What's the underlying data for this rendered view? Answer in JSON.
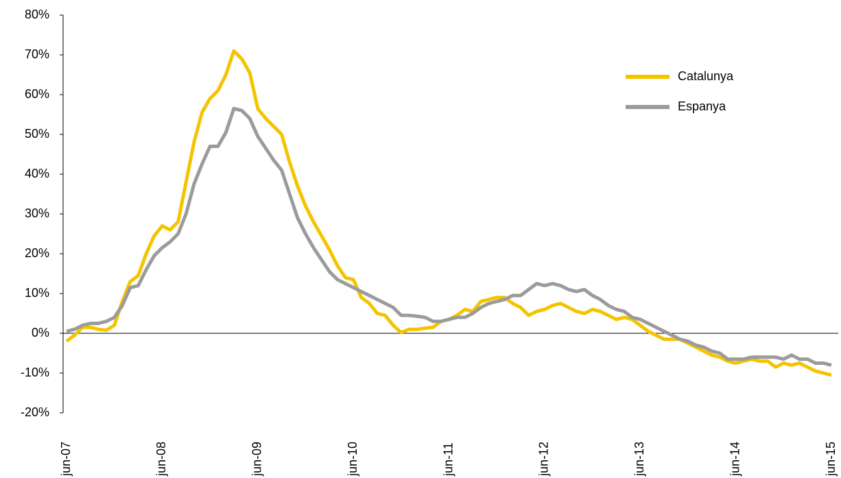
{
  "chart_data": {
    "type": "line",
    "categories": [
      "jun-07",
      null,
      null,
      null,
      null,
      null,
      null,
      null,
      null,
      null,
      null,
      null,
      "jun-08",
      null,
      null,
      null,
      null,
      null,
      null,
      null,
      null,
      null,
      null,
      null,
      "jun-09",
      null,
      null,
      null,
      null,
      null,
      null,
      null,
      null,
      null,
      null,
      null,
      "jun-10",
      null,
      null,
      null,
      null,
      null,
      null,
      null,
      null,
      null,
      null,
      null,
      "jun-11",
      null,
      null,
      null,
      null,
      null,
      null,
      null,
      null,
      null,
      null,
      null,
      "jun-12",
      null,
      null,
      null,
      null,
      null,
      null,
      null,
      null,
      null,
      null,
      null,
      "jun-13",
      null,
      null,
      null,
      null,
      null,
      null,
      null,
      null,
      null,
      null,
      null,
      "jun-14",
      null,
      null,
      null,
      null,
      null,
      null,
      null,
      null,
      null,
      null,
      null,
      "jun-15"
    ],
    "series": [
      {
        "name": "Catalunya",
        "color": "#f5c400",
        "values": [
          -2,
          -0.5,
          1.5,
          1.5,
          1,
          0.8,
          2,
          8,
          13,
          14.5,
          20,
          24.5,
          27,
          26,
          28,
          38,
          48,
          55.5,
          59,
          61,
          65,
          71,
          69,
          65.5,
          56.5,
          54,
          52,
          50,
          43,
          37,
          32,
          28,
          24.5,
          21,
          17,
          14,
          13.5,
          9,
          7.5,
          5,
          4.5,
          2,
          0.2,
          1,
          1,
          1.3,
          1.5,
          3,
          3.5,
          4.5,
          6,
          5.5,
          8,
          8.5,
          9,
          9,
          7.5,
          6.5,
          4.5,
          5.5,
          6,
          7,
          7.5,
          6.5,
          5.5,
          5,
          6,
          5.5,
          4.5,
          3.5,
          4,
          3.5,
          2,
          0.5,
          -0.5,
          -1.5,
          -1.5,
          -1.5,
          -2.5,
          -3.5,
          -4.5,
          -5.5,
          -6,
          -7,
          -7.5,
          -7,
          -6.5,
          -7,
          -7,
          -8.5,
          -7.5,
          -8,
          -7.5,
          -8.5,
          -9.5,
          -10,
          -10.5
        ]
      },
      {
        "name": "Espanya",
        "color": "#9b9b9b",
        "values": [
          0.5,
          1,
          2,
          2.5,
          2.5,
          3,
          4,
          7,
          11.5,
          12,
          16,
          19.5,
          21.5,
          23,
          25,
          30,
          37.5,
          42.5,
          47,
          47,
          50.5,
          56.5,
          56,
          54,
          49.5,
          46.5,
          43.5,
          41,
          35,
          29,
          25,
          21.5,
          18.5,
          15.5,
          13.5,
          12.5,
          11.5,
          10.5,
          9.5,
          8.5,
          7.5,
          6.5,
          4.5,
          4.5,
          4.3,
          4,
          3,
          3,
          3.5,
          4,
          4,
          5,
          6.5,
          7.5,
          8,
          8.5,
          9.5,
          9.5,
          11,
          12.5,
          12,
          12.5,
          12,
          11,
          10.5,
          11,
          9.5,
          8.5,
          7,
          6,
          5.5,
          4,
          3.5,
          2.5,
          1.5,
          0.5,
          -0.5,
          -1.5,
          -2,
          -3,
          -3.5,
          -4.5,
          -5,
          -6.5,
          -6.5,
          -6.5,
          -6,
          -6,
          -6,
          -6,
          -6.5,
          -5.5,
          -6.5,
          -6.5,
          -7.5,
          -7.5,
          -8
        ]
      }
    ],
    "ylim": [
      -20,
      80
    ],
    "yticks": [
      {
        "value": -20,
        "label": "-20%"
      },
      {
        "value": -10,
        "label": "-10%"
      },
      {
        "value": 0,
        "label": "0%"
      },
      {
        "value": 10,
        "label": "10%"
      },
      {
        "value": 20,
        "label": "20%"
      },
      {
        "value": 30,
        "label": "30%"
      },
      {
        "value": 40,
        "label": "40%"
      },
      {
        "value": 50,
        "label": "50%"
      },
      {
        "value": 60,
        "label": "60%"
      },
      {
        "value": 70,
        "label": "70%"
      },
      {
        "value": 80,
        "label": "80%"
      }
    ],
    "grid": false,
    "legend": "right"
  }
}
